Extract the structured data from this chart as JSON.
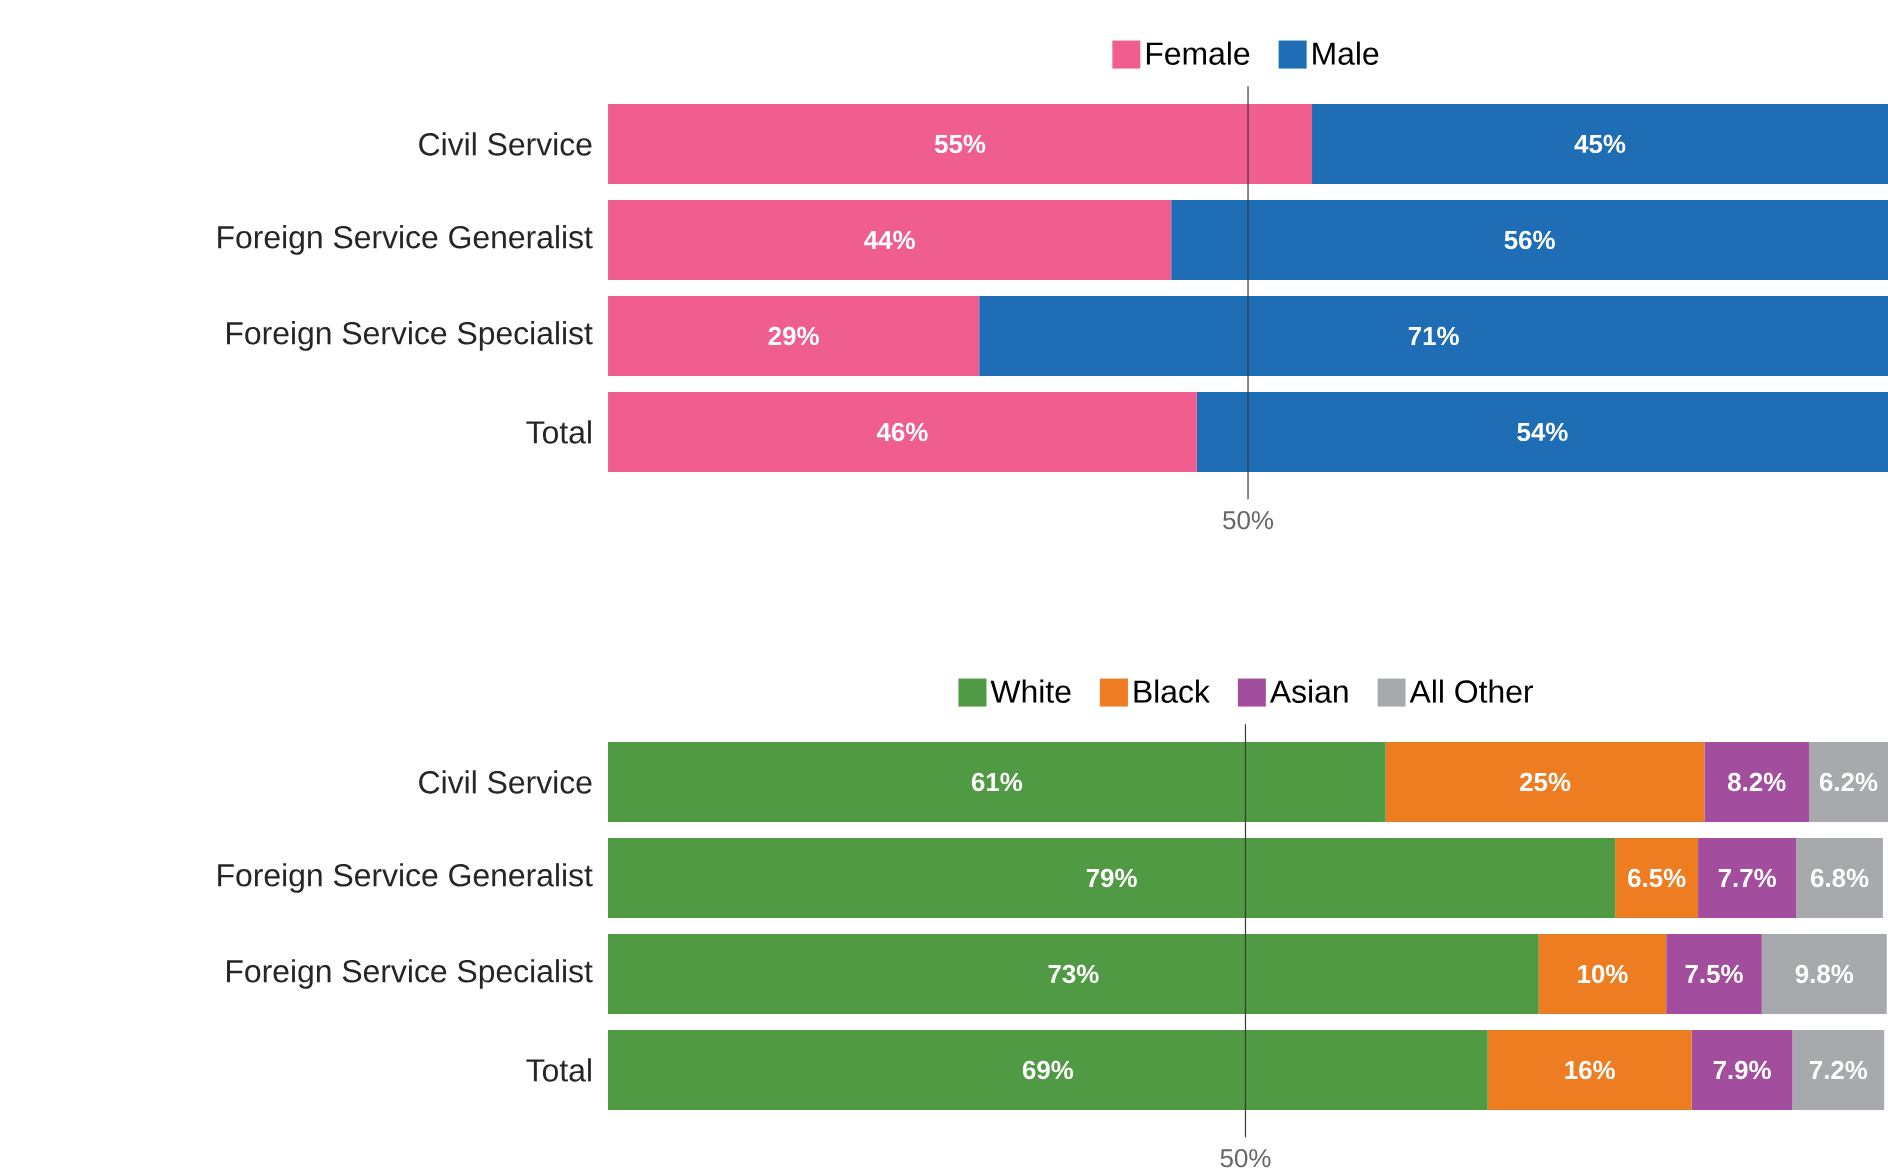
{
  "chart_data": [
    {
      "type": "bar",
      "orientation": "horizontal",
      "stacked": true,
      "legend": "top",
      "tick_labels": "y",
      "xlim": [
        0,
        100
      ],
      "categories": [
        "Civil Service",
        "Foreign Service Generalist",
        "Foreign Service Specialist",
        "Total"
      ],
      "series": [
        {
          "name": "Female",
          "color": "#ef5e8f",
          "values": [
            55,
            44,
            29,
            46
          ],
          "value_labels": [
            "55%",
            "44%",
            "29%",
            "46%"
          ]
        },
        {
          "name": "Male",
          "color": "#1f6db5",
          "values": [
            45,
            56,
            71,
            54
          ],
          "value_labels": [
            "45%",
            "56%",
            "71%",
            "54%"
          ]
        }
      ],
      "ref_lines": [
        {
          "axis": "x",
          "value": 50,
          "label": "50%",
          "color": "#3a3a3a"
        }
      ]
    },
    {
      "type": "bar",
      "orientation": "horizontal",
      "stacked": true,
      "legend": "top",
      "tick_labels": "y",
      "xlim": [
        0,
        100.4
      ],
      "categories": [
        "Civil Service",
        "Foreign Service Generalist",
        "Foreign Service Specialist",
        "Total"
      ],
      "series": [
        {
          "name": "White",
          "color": "#4f9a43",
          "values": [
            61,
            79,
            73,
            69
          ],
          "value_labels": [
            "61%",
            "79%",
            "73%",
            "69%"
          ]
        },
        {
          "name": "Black",
          "color": "#ee7d22",
          "values": [
            25,
            6.5,
            10,
            16
          ],
          "value_labels": [
            "25%",
            "6.5%",
            "10%",
            "16%"
          ]
        },
        {
          "name": "Asian",
          "color": "#a24d9d",
          "values": [
            8.2,
            7.7,
            7.5,
            7.9
          ],
          "value_labels": [
            "8.2%",
            "7.7%",
            "7.5%",
            "7.9%"
          ]
        },
        {
          "name": "All Other",
          "color": "#a7a9ac",
          "values": [
            6.2,
            6.8,
            9.8,
            7.2
          ],
          "value_labels": [
            "6.2%",
            "6.8%",
            "9.8%",
            "7.2%"
          ]
        }
      ],
      "ref_lines": [
        {
          "axis": "x",
          "value": 50,
          "label": "50%",
          "color": "#3a3a3a"
        }
      ]
    }
  ]
}
